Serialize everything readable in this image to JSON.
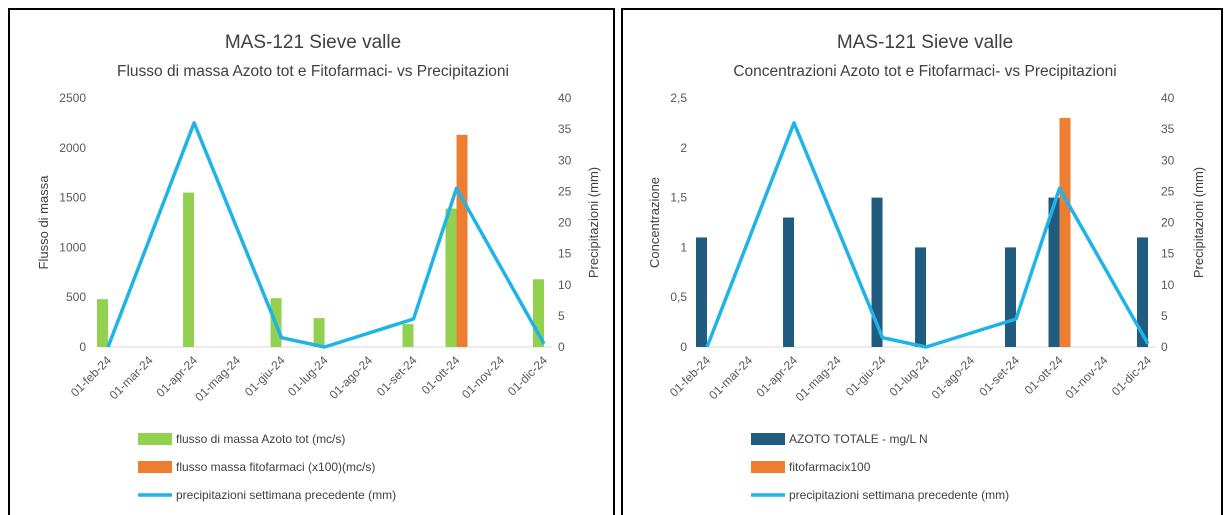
{
  "chart_data": [
    {
      "type": "bar",
      "title": "MAS-121 Sieve valle",
      "subtitle": "Flusso di massa Azoto tot e Fitofarmaci- vs Precipitazioni",
      "ylabel": "Flusso di massa",
      "y2label": "Precipitazioni (mm)",
      "xlabel": "",
      "categories": [
        "01-feb-24",
        "01-mar-24",
        "01-apr-24",
        "01-mag-24",
        "01-giu-24",
        "01-lug-24",
        "01-ago-24",
        "01-set-24",
        "01-ott-24",
        "01-nov-24",
        "01-dic-24"
      ],
      "ylim": [
        0,
        2500
      ],
      "yticks": [
        0,
        500,
        1000,
        1500,
        2000,
        2500
      ],
      "yticklabels": [
        "0",
        "500",
        "1000",
        "1500",
        "2000",
        "2500"
      ],
      "y2lim": [
        0,
        40
      ],
      "y2ticks": [
        0,
        5,
        10,
        15,
        20,
        25,
        30,
        35,
        40
      ],
      "y2ticklabels": [
        "0",
        "5",
        "10",
        "15",
        "20",
        "25",
        "30",
        "35",
        "40"
      ],
      "series": [
        {
          "name": "flusso di massa Azoto tot (mc/s)",
          "kind": "bar",
          "axis": "left",
          "color": "#92d050",
          "points": [
            [
              "2024-02-01",
              480
            ],
            [
              "2024-04-01",
              1550
            ],
            [
              "2024-06-01",
              490
            ],
            [
              "2024-07-01",
              290
            ],
            [
              "2024-09-01",
              230
            ],
            [
              "2024-10-01",
              1390
            ],
            [
              "2024-12-01",
              680
            ]
          ]
        },
        {
          "name": "flusso massa fitofarmaci (x100)(mc/s)",
          "kind": "bar",
          "axis": "left",
          "color": "#ed7d31",
          "points": [
            [
              "2024-10-01",
              2130
            ]
          ]
        },
        {
          "name": "precipitazioni settimana precedente (mm)",
          "kind": "line",
          "axis": "right",
          "color": "#1fb4e6",
          "points": [
            [
              "2024-02-01",
              0
            ],
            [
              "2024-04-01",
              36
            ],
            [
              "2024-06-01",
              1.5
            ],
            [
              "2024-07-01",
              0
            ],
            [
              "2024-09-01",
              4.5
            ],
            [
              "2024-10-01",
              25.5
            ],
            [
              "2024-12-01",
              0.5
            ]
          ]
        }
      ],
      "grid": false,
      "legend": "bottom"
    },
    {
      "type": "bar",
      "title": "MAS-121 Sieve valle",
      "subtitle": "Concentrazioni Azoto tot e Fitofarmaci- vs Precipitazioni",
      "ylabel": "Concentrazione",
      "y2label": "Precipitazioni (mm)",
      "xlabel": "",
      "categories": [
        "01-feb-24",
        "01-mar-24",
        "01-apr-24",
        "01-mag-24",
        "01-giu-24",
        "01-lug-24",
        "01-ago-24",
        "01-set-24",
        "01-ott-24",
        "01-nov-24",
        "01-dic-24"
      ],
      "ylim": [
        0,
        2.5
      ],
      "yticks": [
        0,
        0.5,
        1,
        1.5,
        2,
        2.5
      ],
      "yticklabels": [
        "0",
        "0,5",
        "1",
        "1,5",
        "2",
        "2,5"
      ],
      "y2lim": [
        0,
        40
      ],
      "y2ticks": [
        0,
        5,
        10,
        15,
        20,
        25,
        30,
        35,
        40
      ],
      "y2ticklabels": [
        "0",
        "5",
        "10",
        "15",
        "20",
        "25",
        "30",
        "35",
        "40"
      ],
      "series": [
        {
          "name": "AZOTO TOTALE - mg/L N",
          "kind": "bar",
          "axis": "left",
          "color": "#1f5c80",
          "points": [
            [
              "2024-02-01",
              1.1
            ],
            [
              "2024-04-01",
              1.3
            ],
            [
              "2024-06-01",
              1.5
            ],
            [
              "2024-07-01",
              1.0
            ],
            [
              "2024-09-01",
              1.0
            ],
            [
              "2024-10-01",
              1.5
            ],
            [
              "2024-12-01",
              1.1
            ]
          ]
        },
        {
          "name": "fitofarmacix100",
          "kind": "bar",
          "axis": "left",
          "color": "#ed7d31",
          "points": [
            [
              "2024-10-01",
              2.3
            ]
          ]
        },
        {
          "name": "precipitazioni settimana precedente (mm)",
          "kind": "line",
          "axis": "right",
          "color": "#1fb4e6",
          "points": [
            [
              "2024-02-01",
              0
            ],
            [
              "2024-04-01",
              36
            ],
            [
              "2024-06-01",
              1.5
            ],
            [
              "2024-07-01",
              0
            ],
            [
              "2024-09-01",
              4.5
            ],
            [
              "2024-10-01",
              25.5
            ],
            [
              "2024-12-01",
              0.5
            ]
          ]
        }
      ],
      "grid": false,
      "legend": "bottom"
    }
  ]
}
